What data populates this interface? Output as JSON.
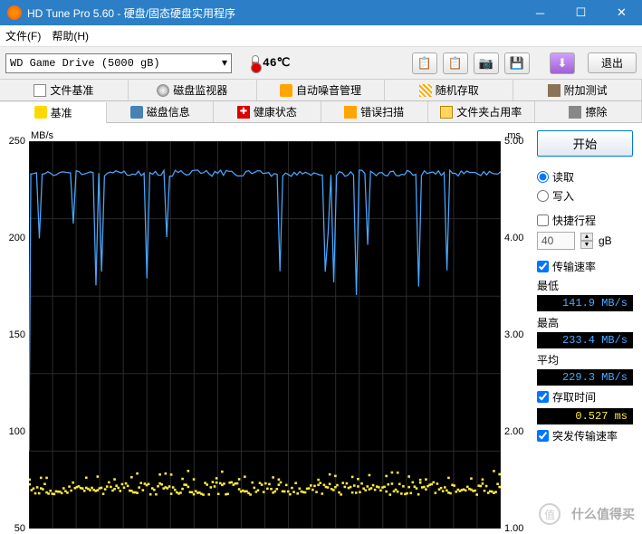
{
  "window": {
    "title": "HD Tune Pro 5.60 - 硬盘/固态硬盘实用程序"
  },
  "menu": {
    "file": "文件(F)",
    "help": "帮助(H)"
  },
  "toolbar": {
    "drive": "WD    Game Drive (5000 gB)",
    "temperature": "46℃",
    "exit": "退出"
  },
  "tabs_row1": [
    {
      "icon": "ico-file",
      "label": "文件基准"
    },
    {
      "icon": "ico-disk",
      "label": "磁盘监视器"
    },
    {
      "icon": "ico-sound",
      "label": "自动噪音管理"
    },
    {
      "icon": "ico-random",
      "label": "随机存取"
    },
    {
      "icon": "ico-extra",
      "label": "附加测试"
    }
  ],
  "tabs_row2": [
    {
      "icon": "ico-bench",
      "label": "基准",
      "active": true
    },
    {
      "icon": "ico-info",
      "label": "磁盘信息"
    },
    {
      "icon": "ico-health",
      "label": "健康状态"
    },
    {
      "icon": "ico-error",
      "label": "错误扫描"
    },
    {
      "icon": "ico-folder",
      "label": "文件夹占用率"
    },
    {
      "icon": "ico-erase",
      "label": "擦除"
    }
  ],
  "chart": {
    "y_left_label": "MB/s",
    "y_right_label": "ms",
    "y_left_max": 250,
    "y_left_step": 50,
    "y_right_max": 5.0,
    "y_right_step": 1.0,
    "y_left_ticks": [
      "250",
      "200",
      "150",
      "100",
      "50"
    ],
    "y_right_ticks": [
      "5.00",
      "4.00",
      "3.00",
      "2.00",
      "1.00"
    ],
    "transfer_avg": 229.3,
    "transfer_min": 141.9,
    "transfer_max": 233.4,
    "access_time": 0.527,
    "background": "#000000",
    "grid_color": "#2a2a2a",
    "line_color": "#4aa8ff",
    "scatter_color": "#ffeb3b"
  },
  "side": {
    "start": "开始",
    "read": "读取",
    "write": "写入",
    "short_stroke": "快捷行程",
    "short_val": "40",
    "gb": "gB",
    "transfer_rate": "传输速率",
    "min": "最低",
    "min_val": "141.9 MB/s",
    "max": "最高",
    "max_val": "233.4 MB/s",
    "avg": "平均",
    "avg_val": "229.3 MB/s",
    "access_time": "存取时间",
    "access_val": "0.527 ms",
    "burst": "突发传输速率"
  },
  "watermark": "什么值得买"
}
